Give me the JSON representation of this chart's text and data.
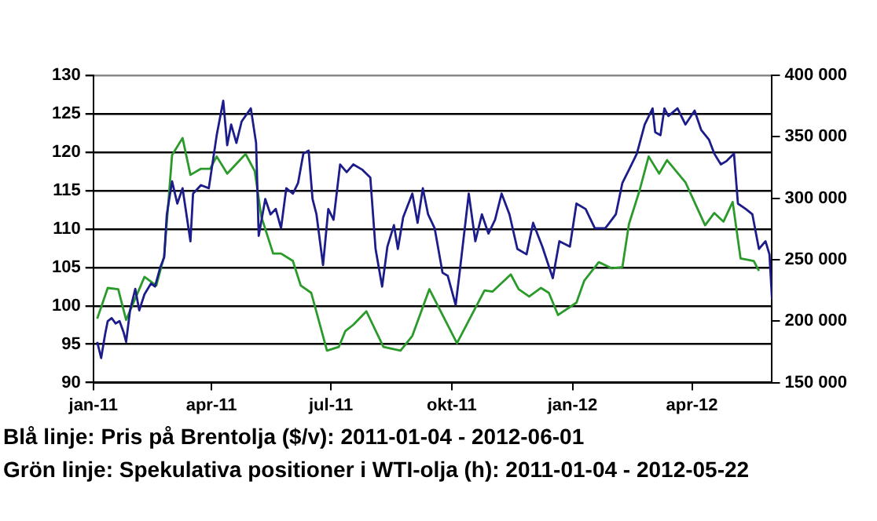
{
  "chart_data": {
    "type": "line",
    "annotations": [
      "Blå linje: Pris på Brentolja ($/v): 2011-01-04 - 2012-06-01",
      "Grön linje: Spekulativa positioner i WTI-olja (h): 2011-01-04 - 2012-05-22"
    ],
    "xlim": [
      "2011-01-01",
      "2012-06-01"
    ],
    "xticks": [
      {
        "value": "2011-01-01",
        "label": "jan-11"
      },
      {
        "value": "2011-04-01",
        "label": "apr-11"
      },
      {
        "value": "2011-07-01",
        "label": "jul-11"
      },
      {
        "value": "2011-10-01",
        "label": "okt-11"
      },
      {
        "value": "2012-01-01",
        "label": "jan-12"
      },
      {
        "value": "2012-04-01",
        "label": "apr-12"
      }
    ],
    "ylim": [
      90,
      130
    ],
    "yticks": [
      90,
      95,
      100,
      105,
      110,
      115,
      120,
      125,
      130
    ],
    "y2lim": [
      150000,
      400000
    ],
    "y2ticks": [
      {
        "value": 150000,
        "label": "150 000"
      },
      {
        "value": 200000,
        "label": "200 000"
      },
      {
        "value": 250000,
        "label": "250 000"
      },
      {
        "value": 300000,
        "label": "300 000"
      },
      {
        "value": 350000,
        "label": "350 000"
      },
      {
        "value": 400000,
        "label": "400 000"
      }
    ],
    "grid": "y",
    "legend": false,
    "marker": "none",
    "line_style": "solid",
    "series": [
      {
        "color": "#1c1c8a",
        "x": [
          "2011-01-04",
          "2011-01-07",
          "2011-01-10",
          "2011-01-12",
          "2011-01-15",
          "2011-01-18",
          "2011-01-21",
          "2011-01-24",
          "2011-01-26",
          "2011-01-29",
          "2011-02-02",
          "2011-02-05",
          "2011-02-09",
          "2011-02-14",
          "2011-02-17",
          "2011-02-21",
          "2011-02-24",
          "2011-02-26",
          "2011-03-02",
          "2011-03-06",
          "2011-03-10",
          "2011-03-16",
          "2011-03-18",
          "2011-03-24",
          "2011-03-30",
          "2011-04-05",
          "2011-04-10",
          "2011-04-13",
          "2011-04-16",
          "2011-04-20",
          "2011-04-24",
          "2011-05-01",
          "2011-05-05",
          "2011-05-07",
          "2011-05-12",
          "2011-05-16",
          "2011-05-20",
          "2011-05-24",
          "2011-05-28",
          "2011-06-02",
          "2011-06-06",
          "2011-06-10",
          "2011-06-14",
          "2011-06-17",
          "2011-06-20",
          "2011-06-25",
          "2011-06-29",
          "2011-07-03",
          "2011-07-08",
          "2011-07-13",
          "2011-07-18",
          "2011-07-25",
          "2011-07-31",
          "2011-08-04",
          "2011-08-09",
          "2011-08-13",
          "2011-08-18",
          "2011-08-21",
          "2011-08-25",
          "2011-09-01",
          "2011-09-05",
          "2011-09-09",
          "2011-09-13",
          "2011-09-18",
          "2011-09-24",
          "2011-09-28",
          "2011-10-04",
          "2011-10-07",
          "2011-10-14",
          "2011-10-19",
          "2011-10-24",
          "2011-10-29",
          "2011-11-03",
          "2011-11-08",
          "2011-11-14",
          "2011-11-20",
          "2011-11-27",
          "2011-12-02",
          "2011-12-09",
          "2011-12-17",
          "2011-12-22",
          "2011-12-30",
          "2012-01-04",
          "2012-01-11",
          "2012-01-18",
          "2012-01-26",
          "2012-02-03",
          "2012-02-08",
          "2012-02-13",
          "2012-02-19",
          "2012-02-25",
          "2012-03-02",
          "2012-03-04",
          "2012-03-08",
          "2012-03-11",
          "2012-03-14",
          "2012-03-21",
          "2012-03-27",
          "2012-04-03",
          "2012-04-08",
          "2012-04-14",
          "2012-04-18",
          "2012-04-23",
          "2012-04-27",
          "2012-05-03",
          "2012-05-06",
          "2012-05-12",
          "2012-05-17",
          "2012-05-22",
          "2012-05-27",
          "2012-05-30",
          "2012-06-01"
        ],
        "values": [
          95.3,
          93.2,
          96.3,
          98,
          98.4,
          97.7,
          98,
          96.6,
          95.3,
          99.4,
          102.2,
          99.4,
          101.5,
          102.9,
          102.5,
          105,
          106.3,
          111.9,
          116.2,
          113.3,
          115.3,
          108.4,
          114.6,
          115.7,
          115.3,
          122.2,
          126.7,
          120.9,
          123.6,
          121.2,
          124,
          125.7,
          121.2,
          109.1,
          113.9,
          111.9,
          112.6,
          110.1,
          115.3,
          114.6,
          116,
          119.8,
          120.2,
          113.9,
          111.9,
          105.3,
          112.6,
          111.2,
          118.4,
          117.4,
          118.4,
          117.7,
          116.7,
          107.4,
          102.5,
          107.7,
          110.5,
          107.4,
          111.5,
          114.6,
          110.8,
          115.3,
          111.9,
          110.1,
          104.3,
          103.9,
          100.1,
          104.3,
          114.6,
          108.4,
          111.9,
          109.4,
          111.2,
          114.6,
          111.9,
          107.4,
          106.7,
          110.8,
          107.7,
          103.6,
          108.4,
          107.7,
          113.3,
          112.6,
          110.1,
          110.1,
          111.9,
          116,
          117.7,
          119.8,
          123.6,
          125.7,
          122.6,
          122.2,
          125.7,
          124.7,
          125.7,
          123.6,
          125.4,
          122.9,
          121.6,
          119.8,
          118.4,
          118.8,
          119.8,
          113.3,
          112.6,
          111.9,
          107.4,
          108.4,
          106.7,
          100.8
        ]
      },
      {
        "color": "#2a9a2a",
        "axis": "y2",
        "x": [
          "2011-01-04",
          "2011-01-12",
          "2011-01-20",
          "2011-01-26",
          "2011-02-09",
          "2011-02-18",
          "2011-02-24",
          "2011-03-02",
          "2011-03-10",
          "2011-03-16",
          "2011-03-24",
          "2011-03-31",
          "2011-04-05",
          "2011-04-13",
          "2011-04-27",
          "2011-05-04",
          "2011-05-09",
          "2011-05-18",
          "2011-05-24",
          "2011-06-02",
          "2011-06-08",
          "2011-06-16",
          "2011-06-28",
          "2011-07-07",
          "2011-07-12",
          "2011-07-18",
          "2011-07-28",
          "2011-08-10",
          "2011-08-23",
          "2011-09-01",
          "2011-09-14",
          "2011-10-05",
          "2011-10-26",
          "2011-11-01",
          "2011-11-15",
          "2011-11-21",
          "2011-11-29",
          "2011-12-08",
          "2011-12-14",
          "2011-12-21",
          "2012-01-04",
          "2012-01-10",
          "2012-01-21",
          "2012-01-31",
          "2012-02-08",
          "2012-02-13",
          "2012-02-21",
          "2012-02-28",
          "2012-03-07",
          "2012-03-13",
          "2012-03-27",
          "2012-04-11",
          "2012-04-18",
          "2012-04-25",
          "2012-05-02",
          "2012-05-08",
          "2012-05-18",
          "2012-05-22"
        ],
        "values": [
          202000,
          227000,
          226000,
          201000,
          236000,
          229000,
          253000,
          335000,
          349000,
          319000,
          324000,
          324000,
          334000,
          320000,
          336000,
          322000,
          285000,
          255000,
          255000,
          249000,
          229000,
          223000,
          176000,
          179000,
          192000,
          197000,
          208000,
          179000,
          176000,
          188000,
          226000,
          182000,
          225000,
          224000,
          238000,
          226000,
          220000,
          227000,
          223000,
          205000,
          215000,
          233000,
          248000,
          243000,
          244000,
          279000,
          306000,
          334000,
          320000,
          331000,
          313000,
          278000,
          288000,
          281000,
          297000,
          251000,
          249000,
          241000
        ]
      }
    ]
  }
}
